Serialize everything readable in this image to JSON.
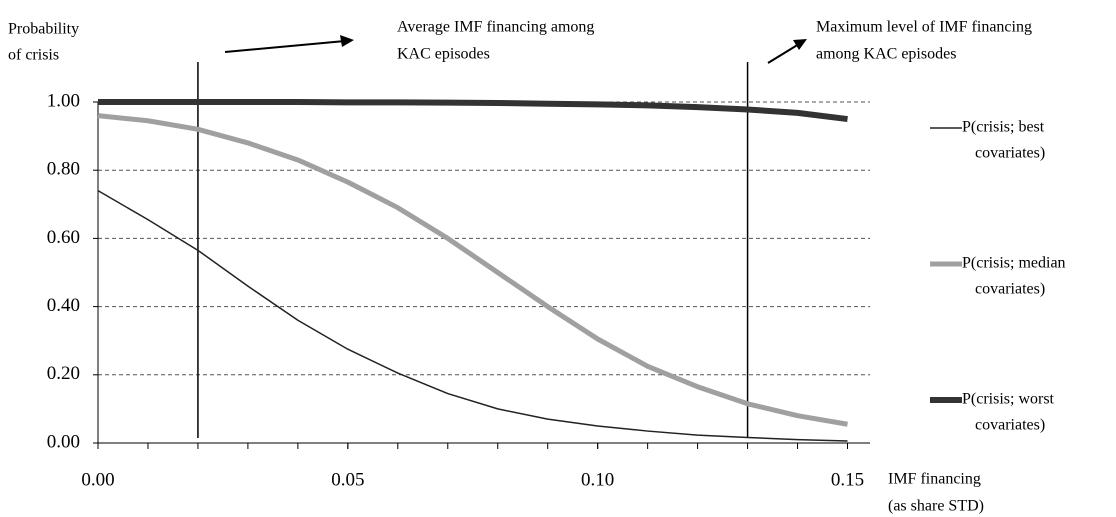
{
  "chart_data": {
    "type": "line",
    "y_label_lines": [
      "Probability",
      "of crisis"
    ],
    "x_label_lines": [
      "IMF financing",
      "(as share STD)"
    ],
    "x": [
      0,
      0.01,
      0.02,
      0.03,
      0.04,
      0.05,
      0.06,
      0.07,
      0.08,
      0.09,
      0.1,
      0.11,
      0.12,
      0.13,
      0.14,
      0.15
    ],
    "series": [
      {
        "name": [
          "P(crisis; best",
          "covariates)"
        ],
        "color": "#222222",
        "width": 1.5,
        "values": [
          0.74,
          0.655,
          0.565,
          0.46,
          0.36,
          0.275,
          0.205,
          0.145,
          0.1,
          0.07,
          0.05,
          0.035,
          0.023,
          0.016,
          0.01,
          0.006
        ]
      },
      {
        "name": [
          "P(crisis; median",
          "covariates)"
        ],
        "color": "#a0a0a0",
        "width": 5,
        "values": [
          0.96,
          0.945,
          0.92,
          0.88,
          0.83,
          0.765,
          0.69,
          0.6,
          0.5,
          0.4,
          0.305,
          0.225,
          0.165,
          0.115,
          0.08,
          0.055
        ]
      },
      {
        "name": [
          "P(crisis; worst",
          "covariates)"
        ],
        "color": "#333333",
        "width": 6,
        "values": [
          1.0,
          1.0,
          1.0,
          1.0,
          1.0,
          0.999,
          0.999,
          0.998,
          0.997,
          0.995,
          0.993,
          0.99,
          0.985,
          0.978,
          0.968,
          0.95
        ]
      }
    ],
    "reference_lines": [
      {
        "x": 0.02,
        "label_lines": [
          "Average IMF financing among",
          "KAC episodes"
        ]
      },
      {
        "x": 0.13,
        "label_lines": [
          "Maximum level of IMF financing",
          "among KAC episodes"
        ]
      }
    ],
    "xlim": [
      0,
      0.1545
    ],
    "ylim": [
      0,
      1
    ],
    "xticks": [
      {
        "value": 0,
        "label": "0.00"
      },
      {
        "value": 0.05,
        "label": "0.05"
      },
      {
        "value": 0.1,
        "label": "0.10"
      },
      {
        "value": 0.15,
        "label": "0.15"
      }
    ],
    "x_minor_ticks": [
      0,
      0.01,
      0.02,
      0.03,
      0.04,
      0.05,
      0.06,
      0.07,
      0.08,
      0.09,
      0.1,
      0.11,
      0.12,
      0.13,
      0.14,
      0.15
    ],
    "yticks": [
      {
        "value": 0,
        "label": "0.00"
      },
      {
        "value": 0.2,
        "label": "0.20"
      },
      {
        "value": 0.4,
        "label": "0.40"
      },
      {
        "value": 0.6,
        "label": "0.60"
      },
      {
        "value": 0.8,
        "label": "0.80"
      },
      {
        "value": 1,
        "label": "1.00"
      }
    ],
    "grid": true
  }
}
